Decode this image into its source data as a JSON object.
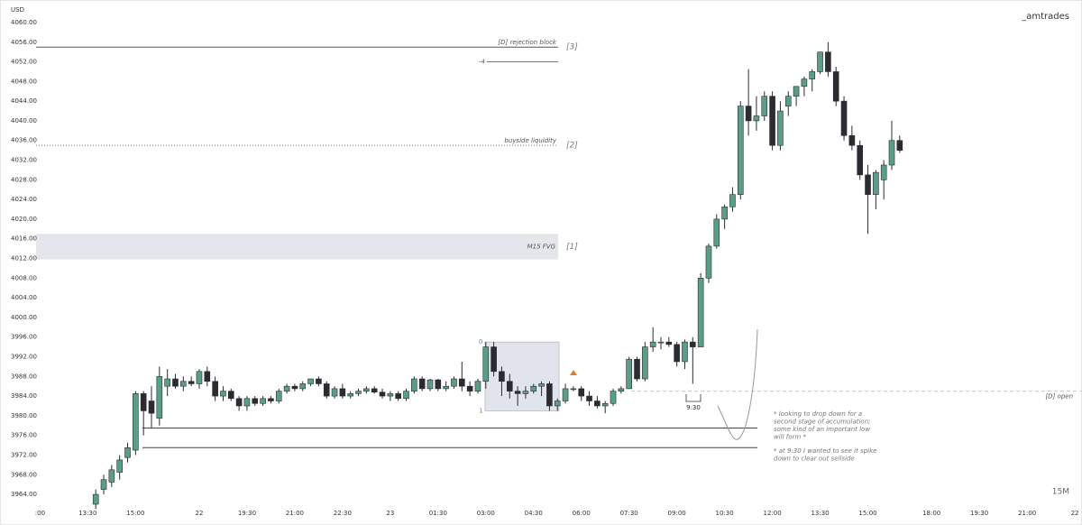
{
  "chart_data": {
    "type": "candlestick",
    "y_unit": "USD",
    "watermark": "_amtrades",
    "timeframe": "15M",
    "up_color": "#5a9e87",
    "down_color": "#2b2b31",
    "x": [
      1,
      2,
      3,
      4,
      5,
      6,
      7,
      8,
      9,
      10,
      11,
      12,
      13,
      14,
      15,
      16,
      17,
      18,
      19,
      20,
      21,
      22,
      23,
      24,
      25,
      26,
      27,
      28,
      29,
      30,
      31,
      32,
      33,
      34,
      35,
      36,
      37,
      38,
      39,
      40,
      41,
      42,
      43,
      44,
      45,
      46,
      47,
      48,
      49,
      50,
      51,
      52,
      53,
      54,
      55,
      56,
      57,
      58,
      59,
      60,
      61,
      62,
      63,
      64,
      65,
      66,
      67,
      68,
      69,
      70,
      71,
      72,
      73,
      74,
      75,
      76,
      77,
      78,
      79,
      80,
      81,
      82,
      83,
      84,
      85,
      86,
      87,
      88,
      89,
      90,
      91,
      92,
      93,
      94,
      95,
      96,
      97,
      98,
      99,
      100,
      101,
      102
    ],
    "open": [
      3962,
      3965,
      3966.5,
      3968.5,
      3971.5,
      3973,
      3984.5,
      3983,
      3979.5,
      3986,
      3987.5,
      3986,
      3987,
      3986.5,
      3989,
      3987,
      3984,
      3985,
      3983.5,
      3982,
      3983.5,
      3982.5,
      3983.5,
      3983,
      3985,
      3986,
      3985.5,
      3986.5,
      3987.5,
      3986.5,
      3984,
      3985.5,
      3984,
      3984.5,
      3985,
      3985.5,
      3984.8,
      3984,
      3984.5,
      3983.5,
      3985,
      3987.5,
      3985.5,
      3987.3,
      3985.5,
      3986,
      3987.5,
      3986,
      3985,
      3987,
      3994,
      3989,
      3987,
      3985,
      3984.5,
      3985,
      3986,
      3986.5,
      3982,
      3983,
      3985.5,
      3985.5,
      3984,
      3983,
      3982,
      3982.5,
      3985,
      3985.5,
      3991.5,
      3987.5,
      3994,
      3995,
      3995,
      3994.5,
      3991,
      3995,
      3994,
      4008,
      4014.5,
      4020,
      4022.5,
      4025,
      4043,
      4040,
      4041,
      4045,
      4035,
      4043,
      4045,
      4047,
      4048.5,
      4050,
      4054,
      4050,
      4044,
      4037,
      4035,
      4029,
      4025,
      4028,
      4031,
      4036
    ],
    "high": [
      3965,
      3968,
      3970,
      3972,
      3974.5,
      3985,
      3985,
      3986,
      3990,
      3989.5,
      3988.5,
      3988,
      3988,
      3989.5,
      3990,
      3988,
      3986,
      3985.5,
      3984,
      3984,
      3984,
      3984,
      3984,
      3985.5,
      3986.5,
      3986.5,
      3987,
      3987.5,
      3988,
      3987,
      3986,
      3986.5,
      3985,
      3985.5,
      3986,
      3986,
      3985.5,
      3985,
      3985,
      3985.5,
      3988,
      3988,
      3987.5,
      3987.5,
      3987,
      3988,
      3991,
      3987,
      3987.5,
      3995,
      3995,
      3990,
      3988.5,
      3986,
      3986,
      3986.5,
      3987,
      3987,
      3983.5,
      3986.5,
      3986,
      3986,
      3985,
      3984,
      3983,
      3985.5,
      3986,
      3992,
      3992,
      3995,
      3998,
      3996,
      3996,
      3995,
      3995.5,
      3996,
      4009,
      4015,
      4021,
      4023,
      4026.5,
      4044,
      4050.5,
      4045,
      4046,
      4046,
      4044,
      4046,
      4047,
      4049,
      4050.5,
      4054,
      4056,
      4051,
      4045,
      4039,
      4036,
      4031,
      4030,
      4032,
      4040,
      4037
    ],
    "low": [
      3961,
      3964,
      3965.5,
      3967,
      3970.5,
      3972,
      3976,
      3977.5,
      3978,
      3984,
      3985.5,
      3985,
      3986,
      3985.5,
      3986,
      3983,
      3983,
      3983,
      3981,
      3981,
      3982,
      3982,
      3982.5,
      3982.5,
      3984.5,
      3985,
      3985,
      3986,
      3986,
      3983.5,
      3983.5,
      3983.5,
      3983.5,
      3984,
      3984.5,
      3984.5,
      3983.5,
      3983,
      3983,
      3983,
      3984.5,
      3985,
      3985,
      3985,
      3985,
      3985.5,
      3985,
      3984,
      3984.5,
      3985.5,
      3988,
      3984,
      3983.5,
      3982,
      3983.5,
      3984.5,
      3984,
      3981,
      3981,
      3982.5,
      3985,
      3983,
      3982,
      3981.5,
      3980.5,
      3982,
      3984.5,
      3985.5,
      3987,
      3987,
      3993,
      3993.5,
      3994,
      3990,
      3989.5,
      3986.5,
      3994,
      4007,
      4014,
      4018,
      4021.5,
      4024,
      4037,
      4038,
      4040,
      4034,
      4034,
      4041,
      4043,
      4045,
      4046,
      4049.5,
      4049,
      4043,
      4036,
      4034,
      4028,
      4017,
      4022,
      4024,
      4030,
      4033.5
    ],
    "close": [
      3964,
      3967,
      3969,
      3971,
      3973.5,
      3984.5,
      3981,
      3980.5,
      3988,
      3987.5,
      3986,
      3987,
      3986.5,
      3989,
      3987,
      3984,
      3985,
      3983.5,
      3982,
      3983.5,
      3982.5,
      3983.5,
      3983,
      3985,
      3986,
      3985.5,
      3986.5,
      3987.5,
      3986.5,
      3984,
      3985.5,
      3984,
      3984.5,
      3985,
      3985.5,
      3984.8,
      3984,
      3984.5,
      3983.5,
      3985,
      3987.5,
      3985.5,
      3987.3,
      3985.5,
      3986,
      3987.5,
      3986,
      3985,
      3987,
      3994,
      3989,
      3987,
      3985,
      3984.5,
      3985,
      3986,
      3986.5,
      3982,
      3983,
      3985.5,
      3985.5,
      3984,
      3983,
      3982,
      3982.5,
      3985,
      3985.5,
      3991.5,
      3987.5,
      3994,
      3995,
      3995,
      3994.5,
      3991,
      3995,
      3994,
      4008,
      4014.5,
      4020,
      4022.5,
      4025,
      4043,
      4040,
      4041,
      4045,
      4035,
      4042,
      4045,
      4047,
      4048.5,
      4050,
      4054,
      4050,
      4044,
      4037,
      4035,
      4029,
      4025,
      4029.5,
      4031,
      4036,
      4034
    ],
    "ylim": [
      3961,
      4063.7
    ],
    "yticks": [
      {
        "value": 3964,
        "label": "3964.00"
      },
      {
        "value": 3968,
        "label": "3968.00"
      },
      {
        "value": 3972,
        "label": "3972.00"
      },
      {
        "value": 3976,
        "label": "3976.00"
      },
      {
        "value": 3980,
        "label": "3980.00"
      },
      {
        "value": 3984,
        "label": "3984.00"
      },
      {
        "value": 3988,
        "label": "3988.00"
      },
      {
        "value": 3992,
        "label": "3992.00"
      },
      {
        "value": 3996,
        "label": "3996.00"
      },
      {
        "value": 4000,
        "label": "4000.00"
      },
      {
        "value": 4004,
        "label": "4004.00"
      },
      {
        "value": 4008,
        "label": "4008.00"
      },
      {
        "value": 4012,
        "label": "4012.00"
      },
      {
        "value": 4016,
        "label": "4016.00"
      },
      {
        "value": 4020,
        "label": "4020.00"
      },
      {
        "value": 4024,
        "label": "4024.00"
      },
      {
        "value": 4028,
        "label": "4028.00"
      },
      {
        "value": 4032,
        "label": "4032.00"
      },
      {
        "value": 4036,
        "label": "4036.00"
      },
      {
        "value": 4040,
        "label": "4040.00"
      },
      {
        "value": 4044,
        "label": "4044.00"
      },
      {
        "value": 4048,
        "label": "4048.00"
      },
      {
        "value": 4052,
        "label": "4052.00"
      },
      {
        "value": 4056,
        "label": "4056.00"
      },
      {
        "value": 4060,
        "label": "4060.00"
      }
    ],
    "xlim": [
      -6.5,
      124.9
    ],
    "xticks": [
      {
        "value": -6,
        "label": ":00"
      },
      {
        "value": 0,
        "label": "13:30"
      },
      {
        "value": 6,
        "label": "15:00"
      },
      {
        "value": 14,
        "label": "22"
      },
      {
        "value": 20,
        "label": "19:30"
      },
      {
        "value": 26,
        "label": "21:00"
      },
      {
        "value": 32,
        "label": "22:30"
      },
      {
        "value": 38,
        "label": "23"
      },
      {
        "value": 44,
        "label": "01:30"
      },
      {
        "value": 50,
        "label": "03:00"
      },
      {
        "value": 56,
        "label": "04:30"
      },
      {
        "value": 62,
        "label": "06:00"
      },
      {
        "value": 68,
        "label": "07:30"
      },
      {
        "value": 74,
        "label": "09:00"
      },
      {
        "value": 80,
        "label": "10:30"
      },
      {
        "value": 86,
        "label": "12:00"
      },
      {
        "value": 92,
        "label": "13:30"
      },
      {
        "value": 98,
        "label": "15:00"
      },
      {
        "value": 106,
        "label": "18:00"
      },
      {
        "value": 112,
        "label": "19:30"
      },
      {
        "value": 118,
        "label": "21:00"
      },
      {
        "value": 124,
        "label": "22"
      }
    ],
    "levels": [
      {
        "label": "[D] rejection block",
        "tag": "[3]",
        "value": 4055
      },
      {
        "label": "-4",
        "value": 4052
      },
      {
        "label": "buyside liquidity",
        "tag": "[2]",
        "value": 4035
      },
      {
        "label": "[D] open",
        "value": 3985
      },
      {
        "value": 3977.5
      },
      {
        "value": 3973.5
      }
    ],
    "zones": [
      {
        "label": "M15 FVG",
        "tag": "[1]",
        "range": [
          4011.8,
          4017
        ]
      },
      {
        "labels": [
          "0",
          "1"
        ],
        "range": [
          3981,
          3995
        ]
      }
    ],
    "marker": "9:30",
    "notes": [
      [
        "* looking to drop down for a",
        "second stage of accumulation;",
        "some kind of an important low",
        "will form *"
      ],
      [
        "* at 9:30 I wanted to see it spike",
        "down to clear out sellside"
      ]
    ]
  }
}
